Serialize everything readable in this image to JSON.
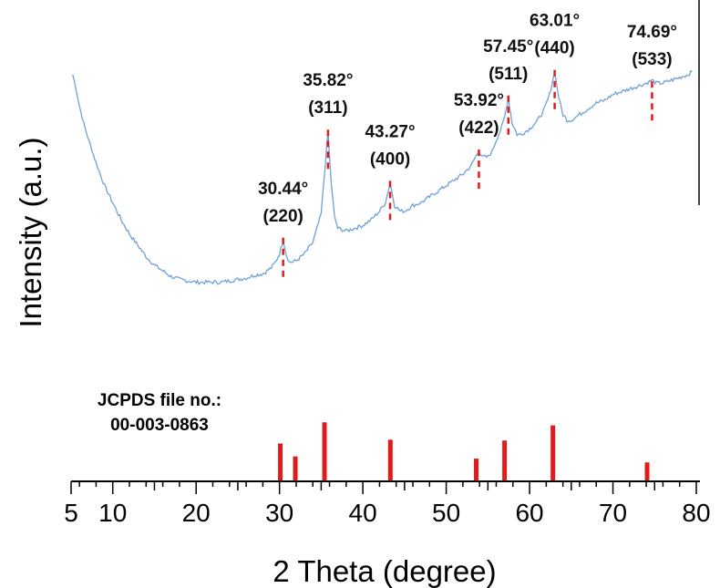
{
  "chart_data": {
    "type": "line",
    "title": "",
    "xlabel": "2 Theta (degree)",
    "ylabel": "Intensity (a.u.)",
    "xlim": [
      5,
      80
    ],
    "xticks": [
      5,
      10,
      20,
      30,
      40,
      50,
      60,
      70,
      80
    ],
    "yticks": [],
    "ylim": [
      0,
      100
    ],
    "grid": false,
    "line_color": "#6fa0d8",
    "reference_color": "#e01b1b",
    "series": [
      {
        "x": [
          5.2,
          5.6,
          6,
          6.5,
          7,
          8,
          9,
          10,
          11,
          12,
          13,
          14,
          15,
          16,
          17,
          18,
          19,
          20,
          21,
          22,
          23,
          24,
          25,
          26,
          27,
          28,
          29,
          29.5,
          30.0,
          30.44,
          30.8,
          31.2,
          32,
          33,
          34,
          35,
          35.4,
          35.82,
          36.2,
          36.6,
          37,
          38,
          39,
          40,
          41,
          42,
          42.7,
          43.27,
          43.8,
          44.5,
          45,
          46,
          47,
          48,
          49,
          50,
          51,
          52,
          53,
          53.5,
          53.92,
          54.4,
          55,
          55.5,
          56,
          56.6,
          57.0,
          57.45,
          57.9,
          58.5,
          59,
          60,
          61,
          61.8,
          62.4,
          63.01,
          63.5,
          64,
          64.5,
          65,
          66,
          67,
          68,
          69,
          70,
          71,
          72,
          73,
          74,
          74.69,
          75.2,
          76,
          77,
          78,
          79,
          79.5
        ],
        "y": [
          93,
          88,
          82,
          76,
          71,
          62,
          54,
          48,
          42,
          37,
          33,
          29,
          26,
          24,
          22,
          21,
          20.5,
          20,
          20,
          20,
          20,
          20.5,
          21,
          21.5,
          22.5,
          23,
          25,
          27,
          30,
          35,
          30,
          27,
          27.5,
          30,
          34,
          44,
          58,
          73,
          55,
          43,
          39,
          38,
          39,
          40,
          42,
          45,
          48,
          55,
          47,
          45,
          45,
          47,
          48,
          50,
          52,
          54,
          56,
          58,
          61,
          64,
          66,
          64,
          64,
          66,
          70,
          74,
          78,
          85,
          76,
          72,
          72,
          74,
          77,
          81,
          86,
          94,
          85,
          79,
          77,
          77,
          79,
          81,
          83,
          84,
          86,
          87,
          88,
          89,
          90,
          91,
          90,
          90,
          91,
          92,
          93,
          94
        ]
      }
    ],
    "peak_annotations": [
      {
        "angle": "30.44°",
        "hkl": "(220)",
        "x": 30.44,
        "y": 35
      },
      {
        "angle": "35.82°",
        "hkl": "(311)",
        "x": 35.82,
        "y": 73
      },
      {
        "angle": "43.27°",
        "hkl": "(400)",
        "x": 43.27,
        "y": 55
      },
      {
        "angle": "53.92°",
        "hkl": "(422)",
        "x": 53.92,
        "y": 66
      },
      {
        "angle": "57.45°",
        "hkl": "(511)",
        "x": 57.45,
        "y": 85
      },
      {
        "angle": "63.01°",
        "hkl": "(440)",
        "x": 63.01,
        "y": 94
      },
      {
        "angle": "74.69°",
        "hkl": "(533)",
        "x": 74.69,
        "y": 90
      }
    ],
    "reference": {
      "label_line1": "JCPDS file no.:",
      "label_line2": "00-003-0863",
      "sticks": [
        {
          "x": 30.1,
          "height": 50
        },
        {
          "x": 31.9,
          "height": 33
        },
        {
          "x": 35.4,
          "height": 78
        },
        {
          "x": 43.3,
          "height": 55
        },
        {
          "x": 53.6,
          "height": 30
        },
        {
          "x": 57.0,
          "height": 54
        },
        {
          "x": 62.8,
          "height": 74
        },
        {
          "x": 74.1,
          "height": 25
        }
      ]
    }
  }
}
